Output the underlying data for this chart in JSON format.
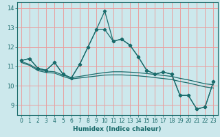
{
  "xlabel": "Humidex (Indice chaleur)",
  "bg_color": "#cce8ec",
  "grid_color_v": "#e8a0a0",
  "grid_color_h": "#e8a0a0",
  "line_color": "#1a6b6b",
  "xlim": [
    -0.5,
    23.5
  ],
  "ylim": [
    8.5,
    14.3
  ],
  "xticks": [
    0,
    1,
    2,
    3,
    4,
    5,
    6,
    7,
    8,
    9,
    10,
    11,
    12,
    13,
    14,
    15,
    16,
    17,
    18,
    19,
    20,
    21,
    22,
    23
  ],
  "yticks": [
    9,
    10,
    11,
    12,
    13,
    14
  ],
  "series1": [
    11.3,
    11.4,
    10.9,
    10.8,
    11.2,
    10.6,
    10.4,
    11.1,
    12.0,
    12.9,
    13.85,
    12.3,
    12.4,
    12.1,
    11.5,
    10.8,
    10.6,
    10.7,
    10.6,
    9.5,
    9.5,
    8.8,
    8.9,
    10.2
  ],
  "series2": [
    11.3,
    11.4,
    10.9,
    10.8,
    11.2,
    10.6,
    10.4,
    11.1,
    12.0,
    12.9,
    12.9,
    12.3,
    12.4,
    12.1,
    11.5,
    10.8,
    10.6,
    10.7,
    10.6,
    9.5,
    9.5,
    8.8,
    8.9,
    10.2
  ],
  "series3": [
    11.25,
    11.1,
    10.85,
    10.75,
    10.72,
    10.55,
    10.42,
    10.48,
    10.55,
    10.62,
    10.68,
    10.72,
    10.72,
    10.7,
    10.67,
    10.63,
    10.58,
    10.53,
    10.48,
    10.38,
    10.3,
    10.2,
    10.1,
    10.05
  ],
  "series4": [
    11.2,
    11.05,
    10.78,
    10.68,
    10.65,
    10.48,
    10.35,
    10.4,
    10.45,
    10.5,
    10.55,
    10.56,
    10.56,
    10.54,
    10.51,
    10.47,
    10.42,
    10.37,
    10.32,
    10.22,
    10.14,
    10.04,
    9.94,
    9.88
  ]
}
